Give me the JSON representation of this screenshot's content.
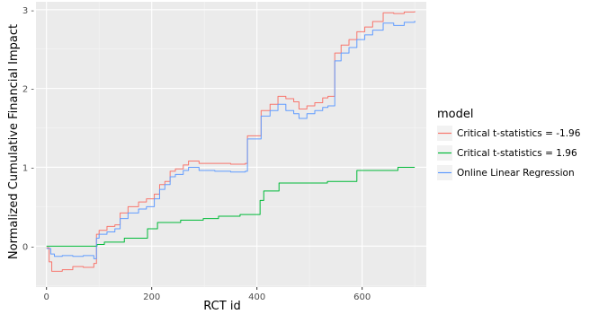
{
  "chart_data": {
    "type": "line",
    "xlabel": "RCT id",
    "ylabel": "Normalized Cumulative Financial Impact",
    "xlim": [
      -20,
      722
    ],
    "ylim": [
      -0.52,
      3.1
    ],
    "xticks": [
      0,
      200,
      400,
      600
    ],
    "yticks": [
      0,
      1,
      2,
      3
    ],
    "x_tick_labels": [
      "0",
      "200",
      "400",
      "600"
    ],
    "y_tick_labels": [
      "0 -",
      "1 -",
      "2 -",
      "3 -"
    ],
    "grid": true,
    "legend_title": "model",
    "legend_position": "right",
    "series": [
      {
        "name": "Critical t-statistics = -1.96",
        "color": "#F8766D",
        "points": [
          [
            0,
            -0.02
          ],
          [
            5,
            -0.2
          ],
          [
            10,
            -0.32
          ],
          [
            30,
            -0.3
          ],
          [
            50,
            -0.26
          ],
          [
            70,
            -0.27
          ],
          [
            90,
            -0.22
          ],
          [
            95,
            0.15
          ],
          [
            100,
            0.2
          ],
          [
            115,
            0.25
          ],
          [
            130,
            0.27
          ],
          [
            140,
            0.42
          ],
          [
            155,
            0.5
          ],
          [
            175,
            0.56
          ],
          [
            190,
            0.6
          ],
          [
            205,
            0.66
          ],
          [
            215,
            0.78
          ],
          [
            225,
            0.82
          ],
          [
            235,
            0.95
          ],
          [
            245,
            0.98
          ],
          [
            260,
            1.03
          ],
          [
            270,
            1.08
          ],
          [
            290,
            1.05
          ],
          [
            320,
            1.05
          ],
          [
            350,
            1.04
          ],
          [
            378,
            1.05
          ],
          [
            382,
            1.4
          ],
          [
            395,
            1.4
          ],
          [
            408,
            1.72
          ],
          [
            425,
            1.8
          ],
          [
            440,
            1.9
          ],
          [
            455,
            1.87
          ],
          [
            470,
            1.83
          ],
          [
            480,
            1.74
          ],
          [
            495,
            1.78
          ],
          [
            510,
            1.82
          ],
          [
            525,
            1.88
          ],
          [
            535,
            1.9
          ],
          [
            548,
            2.45
          ],
          [
            560,
            2.55
          ],
          [
            575,
            2.62
          ],
          [
            590,
            2.72
          ],
          [
            605,
            2.78
          ],
          [
            620,
            2.85
          ],
          [
            640,
            2.96
          ],
          [
            660,
            2.95
          ],
          [
            680,
            2.97
          ],
          [
            700,
            2.98
          ]
        ]
      },
      {
        "name": "Critical t-statistics = 1.96",
        "color": "#00BA38",
        "points": [
          [
            0,
            0.0
          ],
          [
            50,
            0.0
          ],
          [
            96,
            0.0
          ],
          [
            96,
            0.02
          ],
          [
            110,
            0.02
          ],
          [
            110,
            0.05
          ],
          [
            148,
            0.05
          ],
          [
            148,
            0.1
          ],
          [
            192,
            0.1
          ],
          [
            192,
            0.22
          ],
          [
            211,
            0.22
          ],
          [
            211,
            0.3
          ],
          [
            255,
            0.3
          ],
          [
            255,
            0.33
          ],
          [
            298,
            0.33
          ],
          [
            298,
            0.35
          ],
          [
            327,
            0.35
          ],
          [
            327,
            0.38
          ],
          [
            368,
            0.38
          ],
          [
            368,
            0.4
          ],
          [
            406,
            0.4
          ],
          [
            406,
            0.58
          ],
          [
            413,
            0.58
          ],
          [
            413,
            0.7
          ],
          [
            442,
            0.7
          ],
          [
            442,
            0.8
          ],
          [
            534,
            0.8
          ],
          [
            534,
            0.82
          ],
          [
            590,
            0.82
          ],
          [
            590,
            0.96
          ],
          [
            668,
            0.96
          ],
          [
            668,
            1.0
          ],
          [
            700,
            1.0
          ]
        ]
      },
      {
        "name": "Online Linear Regression",
        "color": "#619CFF",
        "points": [
          [
            0,
            -0.03
          ],
          [
            8,
            -0.1
          ],
          [
            15,
            -0.13
          ],
          [
            30,
            -0.12
          ],
          [
            50,
            -0.13
          ],
          [
            70,
            -0.12
          ],
          [
            90,
            -0.16
          ],
          [
            95,
            0.1
          ],
          [
            100,
            0.15
          ],
          [
            115,
            0.18
          ],
          [
            130,
            0.22
          ],
          [
            140,
            0.35
          ],
          [
            155,
            0.42
          ],
          [
            175,
            0.47
          ],
          [
            190,
            0.5
          ],
          [
            205,
            0.6
          ],
          [
            215,
            0.72
          ],
          [
            225,
            0.78
          ],
          [
            235,
            0.88
          ],
          [
            245,
            0.91
          ],
          [
            260,
            0.96
          ],
          [
            270,
            1.0
          ],
          [
            290,
            0.96
          ],
          [
            320,
            0.95
          ],
          [
            350,
            0.94
          ],
          [
            378,
            0.95
          ],
          [
            382,
            1.36
          ],
          [
            395,
            1.36
          ],
          [
            408,
            1.65
          ],
          [
            425,
            1.72
          ],
          [
            440,
            1.8
          ],
          [
            455,
            1.72
          ],
          [
            470,
            1.68
          ],
          [
            480,
            1.62
          ],
          [
            495,
            1.68
          ],
          [
            510,
            1.72
          ],
          [
            525,
            1.76
          ],
          [
            535,
            1.78
          ],
          [
            548,
            2.35
          ],
          [
            560,
            2.45
          ],
          [
            575,
            2.52
          ],
          [
            590,
            2.62
          ],
          [
            605,
            2.68
          ],
          [
            620,
            2.74
          ],
          [
            640,
            2.83
          ],
          [
            660,
            2.8
          ],
          [
            680,
            2.84
          ],
          [
            700,
            2.86
          ]
        ]
      }
    ]
  }
}
